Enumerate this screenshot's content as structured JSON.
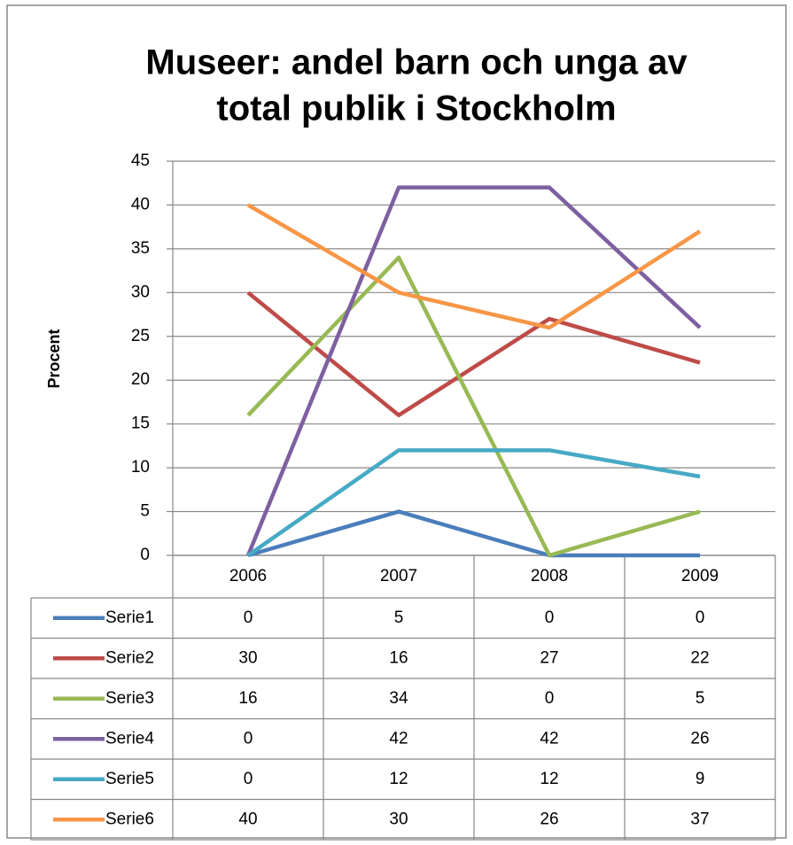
{
  "chart_data": {
    "type": "line",
    "title": [
      "Museer: andel barn och unga av",
      "total publik i Stockholm"
    ],
    "y_label": "Procent",
    "categories": [
      "2006",
      "2007",
      "2008",
      "2009"
    ],
    "series": [
      {
        "name": "Serie1",
        "color": "#4a7ebb",
        "values": [
          0,
          5,
          0,
          0
        ]
      },
      {
        "name": "Serie2",
        "color": "#be4b48",
        "values": [
          30,
          16,
          27,
          22
        ]
      },
      {
        "name": "Serie3",
        "color": "#98b954",
        "values": [
          16,
          34,
          0,
          5
        ]
      },
      {
        "name": "Serie4",
        "color": "#7d60a0",
        "values": [
          0,
          42,
          42,
          26
        ]
      },
      {
        "name": "Serie5",
        "color": "#46aac5",
        "values": [
          0,
          12,
          12,
          9
        ]
      },
      {
        "name": "Serie6",
        "color": "#f79646",
        "values": [
          40,
          30,
          26,
          37
        ]
      }
    ],
    "ylim": [
      0,
      45
    ],
    "yticks": [
      0,
      5,
      10,
      15,
      20,
      25,
      30,
      35,
      40,
      45
    ],
    "grid": true
  }
}
